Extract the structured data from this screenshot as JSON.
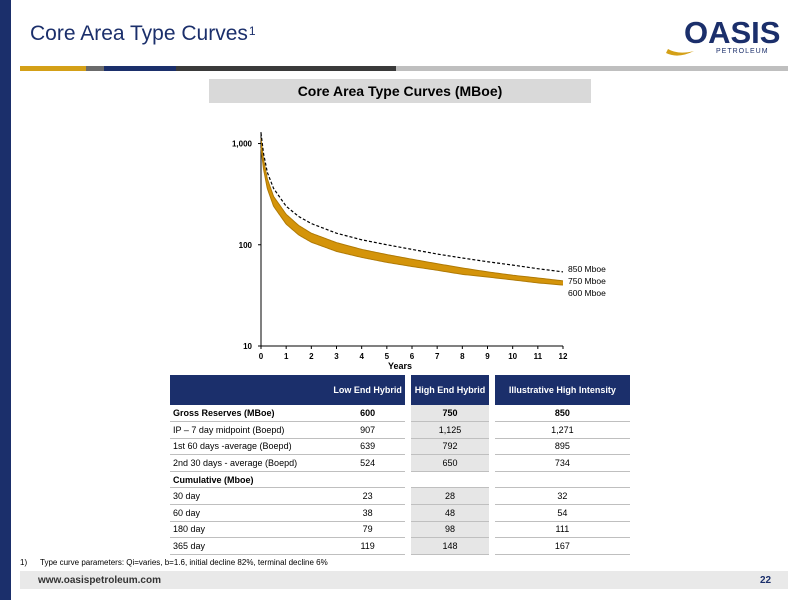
{
  "header": {
    "title": "Core Area Type Curves",
    "title_sup": "1",
    "logo_text": "OASIS",
    "logo_sub": "PETROLEUM"
  },
  "colors": {
    "navy": "#1b2f6b",
    "gold": "#d4a017",
    "curve": "#d4940a"
  },
  "chart_heading": "Core Area Type Curves (MBoe)",
  "chart_data": {
    "type": "line",
    "title": "Core Area Type Curves (MBoe)",
    "xlabel": "Years",
    "ylabel": "",
    "xlim": [
      0,
      12
    ],
    "ylim": [
      10,
      1300
    ],
    "yscale": "log",
    "x_ticks": [
      "0",
      "1",
      "2",
      "3",
      "4",
      "5",
      "6",
      "7",
      "8",
      "9",
      "10",
      "11",
      "12"
    ],
    "y_ticks": [
      {
        "value": 10,
        "label": "10"
      },
      {
        "value": 100,
        "label": "100"
      },
      {
        "value": 1000,
        "label": "1,000"
      }
    ],
    "grid": false,
    "series": [
      {
        "name": "850 Mboe",
        "style": "dashed",
        "x": [
          0,
          0.1,
          0.25,
          0.5,
          1,
          1.5,
          2,
          3,
          4,
          5,
          6,
          7,
          8,
          9,
          10,
          11,
          12
        ],
        "y": [
          1271,
          800,
          520,
          360,
          240,
          190,
          162,
          130,
          112,
          100,
          90,
          81,
          74,
          68,
          63,
          58,
          54
        ]
      },
      {
        "name": "750 Mboe",
        "style": "solid",
        "x": [
          0,
          0.1,
          0.25,
          0.5,
          1,
          1.5,
          2,
          3,
          4,
          5,
          6,
          7,
          8,
          9,
          10,
          11,
          12
        ],
        "y": [
          1125,
          700,
          450,
          300,
          200,
          155,
          130,
          105,
          90,
          80,
          72,
          65,
          59,
          54,
          50,
          47,
          44
        ]
      },
      {
        "name": "600 Mboe",
        "style": "solid",
        "x": [
          0,
          0.1,
          0.25,
          0.5,
          1,
          1.5,
          2,
          3,
          4,
          5,
          6,
          7,
          8,
          9,
          10,
          11,
          12
        ],
        "y": [
          907,
          560,
          360,
          240,
          160,
          125,
          106,
          86,
          75,
          67,
          61,
          56,
          51,
          48,
          45,
          42,
          40
        ]
      }
    ]
  },
  "table": {
    "headers": [
      "",
      "Low End Hybrid",
      "High End Hybrid",
      "Illustrative High Intensity"
    ],
    "rows": [
      {
        "label": "Gross Reserves (MBoe)",
        "values": [
          "600",
          "750",
          "850"
        ],
        "bold": true
      },
      {
        "label": "IP – 7 day midpoint (Boepd)",
        "values": [
          "907",
          "1,125",
          "1,271"
        ]
      },
      {
        "label": "1st 60 days -average (Boepd)",
        "values": [
          "639",
          "792",
          "895"
        ]
      },
      {
        "label": "2nd 30 days - average (Boepd)",
        "values": [
          "524",
          "650",
          "734"
        ]
      },
      {
        "label": "Cumulative (Mboe)",
        "values": [
          "",
          "",
          ""
        ],
        "section": true
      },
      {
        "label": "30 day",
        "values": [
          "23",
          "28",
          "32"
        ]
      },
      {
        "label": "60 day",
        "values": [
          "38",
          "48",
          "54"
        ]
      },
      {
        "label": "180 day",
        "values": [
          "79",
          "98",
          "111"
        ]
      },
      {
        "label": "365 day",
        "values": [
          "119",
          "148",
          "167"
        ]
      }
    ]
  },
  "footnote": {
    "number": "1)",
    "text": "Type curve parameters: Qi=varies, b=1.6, initial decline 82%, terminal decline 6%"
  },
  "footer": {
    "url": "www.oasispetroleum.com",
    "page_number": "22"
  }
}
